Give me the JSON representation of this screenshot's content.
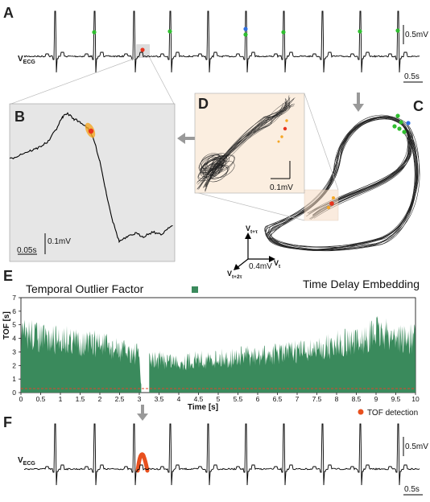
{
  "panels": {
    "a": {
      "label": "A",
      "signal": "V",
      "signal_sub": "ECG",
      "scale_v": "0.5mV",
      "scale_t": "0.5s"
    },
    "b": {
      "label": "B",
      "scale_t": "0.05s",
      "scale_v": "0.1mV"
    },
    "c": {
      "label": "C",
      "caption": "Time Delay Embedding",
      "axis_v1": "V",
      "axis_v1_sub": "t+τ",
      "axis_v2": "V",
      "axis_v2_sub": "t",
      "axis_v3": "V",
      "axis_v3_sub": "t+2τ",
      "scale": "0.4mV"
    },
    "d": {
      "label": "D",
      "scale": "0.1mV"
    },
    "e": {
      "label": "E",
      "legend": "Temporal Outlier Factor"
    },
    "f": {
      "label": "F",
      "signal": "V",
      "signal_sub": "ECG",
      "scale_v": "0.5mV",
      "scale_t": "0.5s",
      "legend": "TOF detection"
    }
  },
  "colors": {
    "ecg": "#000000",
    "tof_fill": "#3a8a5c",
    "threshold": "#e0442a",
    "detection": "#e8501e",
    "highlight": "#f5a623",
    "beat_green": "#2fbf2f",
    "beat_blue": "#2f6fe0",
    "panel_gray": "#e6e6e6",
    "panel_peach": "#fbeee0"
  },
  "chart_data": {
    "type": "area",
    "title": "",
    "xlabel": "Time [s]",
    "ylabel": "TOF [s]",
    "xlim": [
      0,
      10
    ],
    "ylim": [
      0,
      7
    ],
    "x_ticks": [
      "0",
      "0.5",
      "1",
      "1.5",
      "2",
      "2.5",
      "3",
      "3.5",
      "4",
      "4.5",
      "5",
      "5.5",
      "6",
      "6.5",
      "7",
      "7.5",
      "8",
      "8.5",
      "9",
      "9.5",
      "10"
    ],
    "y_ticks": [
      "0",
      "1",
      "2",
      "3",
      "4",
      "5",
      "6",
      "7"
    ],
    "threshold": 0.3,
    "gap_interval": [
      3.05,
      3.25
    ],
    "series": [
      {
        "name": "Temporal Outlier Factor",
        "x": [
          0.0,
          0.25,
          0.5,
          0.75,
          1.0,
          1.25,
          1.5,
          1.75,
          2.0,
          2.25,
          2.5,
          2.75,
          3.0,
          3.05,
          3.25,
          3.5,
          3.75,
          4.0,
          4.25,
          4.5,
          4.75,
          5.0,
          5.25,
          5.5,
          5.75,
          6.0,
          6.25,
          6.5,
          6.75,
          7.0,
          7.25,
          7.5,
          7.75,
          8.0,
          8.25,
          8.5,
          8.75,
          9.0,
          9.25,
          9.5,
          9.75,
          10.0
        ],
        "y": [
          5.3,
          5.6,
          5.2,
          4.9,
          5.1,
          5.0,
          4.8,
          4.6,
          4.7,
          4.2,
          4.0,
          3.9,
          3.6,
          0.0,
          3.0,
          3.1,
          3.1,
          2.9,
          3.0,
          3.2,
          3.1,
          3.3,
          3.2,
          3.4,
          3.5,
          3.3,
          3.6,
          3.7,
          3.8,
          3.9,
          4.0,
          4.1,
          4.3,
          4.6,
          4.8,
          4.7,
          5.1,
          5.8,
          5.5,
          5.4,
          5.0,
          5.2
        ]
      }
    ]
  }
}
